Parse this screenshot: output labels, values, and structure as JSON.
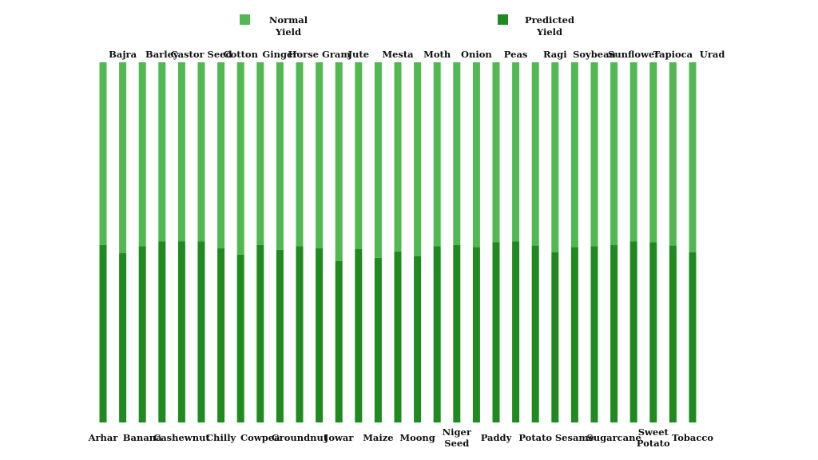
{
  "chart_data": {
    "type": "bar",
    "stacked": true,
    "categories": [
      "Arhar",
      "Bajra",
      "Banana",
      "Barley",
      "Cashewnut",
      "Castor Seed",
      "Chilly",
      "Cotton",
      "Cowpea",
      "Ginger",
      "Groundnut",
      "Horse Gram",
      "Jowar",
      "Jute",
      "Maize",
      "Mesta",
      "Moong",
      "Moth",
      "Niger Seed",
      "Onion",
      "Paddy",
      "Peas",
      "Potato",
      "Ragi",
      "Sesame",
      "Soybean",
      "Sugarcane",
      "Sunflower",
      "Sweet Potato",
      "Tapioca",
      "Tobacco",
      "Urad"
    ],
    "series": [
      {
        "name": "Predicted Yield",
        "color": "#1f8a1f",
        "values": [
          49.3,
          47.0,
          48.9,
          50.3,
          50.3,
          50.3,
          48.4,
          46.6,
          49.3,
          47.9,
          48.9,
          48.4,
          44.8,
          48.2,
          45.7,
          47.5,
          46.2,
          48.9,
          49.3,
          48.7,
          50.0,
          50.3,
          49.1,
          47.3,
          48.7,
          48.9,
          49.3,
          50.3,
          50.0,
          49.1,
          47.3,
          0
        ]
      },
      {
        "name": "Normal Yield",
        "color": "#52b852",
        "values": [
          50.7,
          53.0,
          51.1,
          49.7,
          49.7,
          49.7,
          51.6,
          53.4,
          50.7,
          52.1,
          51.1,
          51.6,
          55.2,
          51.8,
          54.3,
          52.5,
          53.8,
          51.1,
          50.7,
          51.3,
          50.0,
          49.7,
          50.9,
          52.7,
          51.3,
          51.1,
          50.7,
          49.7,
          50.0,
          50.9,
          52.7,
          0
        ]
      }
    ],
    "ylim": [
      0,
      100
    ],
    "legend_position": "top-center",
    "grid": false
  }
}
